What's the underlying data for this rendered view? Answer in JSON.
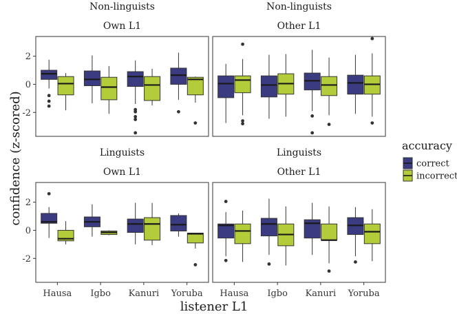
{
  "chart_data": {
    "type": "boxplot",
    "xlabel": "listener L1",
    "ylabel": "confidence (z-scored)",
    "categories": [
      "Hausa",
      "Igbo",
      "Kanuri",
      "Yoruba"
    ],
    "ylim": [
      -3.7,
      3.4
    ],
    "yticks": [
      -2,
      0,
      2
    ],
    "grid": false,
    "legend": {
      "title": "accuracy",
      "placement": "right",
      "entries": [
        {
          "label": "correct",
          "color": "#3b3b82"
        },
        {
          "label": "incorrect",
          "color": "#b3cc3a"
        }
      ]
    },
    "panels": [
      {
        "row_strip": "Non-linguists",
        "col_strip": "Own L1",
        "boxes": [
          {
            "category": "Hausa",
            "accuracy": "correct",
            "min": -0.3,
            "q1": 0.35,
            "median": 0.75,
            "q3": 1.0,
            "max": 1.75,
            "outliers": [
              -0.8,
              -1.2,
              -1.55
            ]
          },
          {
            "category": "Hausa",
            "accuracy": "incorrect",
            "min": -1.85,
            "q1": -0.75,
            "median": 0.05,
            "q3": 0.55,
            "max": 0.8,
            "outliers": []
          },
          {
            "category": "Igbo",
            "accuracy": "correct",
            "min": -1.35,
            "q1": -0.1,
            "median": 0.35,
            "q3": 0.95,
            "max": 2.05,
            "outliers": []
          },
          {
            "category": "Igbo",
            "accuracy": "incorrect",
            "min": -2.1,
            "q1": -1.1,
            "median": -0.2,
            "q3": 0.5,
            "max": 1.3,
            "outliers": []
          },
          {
            "category": "Kanuri",
            "accuracy": "correct",
            "min": -1.4,
            "q1": -0.15,
            "median": 0.55,
            "q3": 0.9,
            "max": 1.7,
            "outliers": [
              -1.8,
              -1.95,
              -2.3,
              -2.5,
              -3.45
            ]
          },
          {
            "category": "Kanuri",
            "accuracy": "incorrect",
            "min": -1.5,
            "q1": -1.15,
            "median": -0.05,
            "q3": 0.55,
            "max": 1.1,
            "outliers": []
          },
          {
            "category": "Yoruba",
            "accuracy": "correct",
            "min": -1.1,
            "q1": 0.0,
            "median": 0.65,
            "q3": 1.15,
            "max": 2.25,
            "outliers": [
              -1.95
            ]
          },
          {
            "category": "Yoruba",
            "accuracy": "incorrect",
            "min": -1.3,
            "q1": -0.75,
            "median": 0.35,
            "q3": 0.5,
            "max": 0.55,
            "outliers": [
              -2.75
            ]
          }
        ]
      },
      {
        "row_strip": "Non-linguists",
        "col_strip": "Other L1",
        "boxes": [
          {
            "category": "Hausa",
            "accuracy": "correct",
            "min": -2.75,
            "q1": -0.95,
            "median": 0.05,
            "q3": 0.6,
            "max": 1.45,
            "outliers": []
          },
          {
            "category": "Hausa",
            "accuracy": "incorrect",
            "min": -2.2,
            "q1": -0.6,
            "median": 0.3,
            "q3": 0.6,
            "max": 1.8,
            "outliers": [
              2.85,
              -2.6,
              -2.8
            ]
          },
          {
            "category": "Igbo",
            "accuracy": "correct",
            "min": -2.45,
            "q1": -0.9,
            "median": -0.05,
            "q3": 0.6,
            "max": 2.1,
            "outliers": []
          },
          {
            "category": "Igbo",
            "accuracy": "incorrect",
            "min": -2.3,
            "q1": -0.7,
            "median": 0.05,
            "q3": 0.75,
            "max": 2.15,
            "outliers": []
          },
          {
            "category": "Kanuri",
            "accuracy": "correct",
            "min": -1.9,
            "q1": -0.4,
            "median": 0.25,
            "q3": 0.8,
            "max": 2.45,
            "outliers": [
              -2.25,
              -3.45
            ]
          },
          {
            "category": "Kanuri",
            "accuracy": "incorrect",
            "min": -2.2,
            "q1": -0.8,
            "median": -0.05,
            "q3": 0.55,
            "max": 1.9,
            "outliers": [
              -2.85
            ]
          },
          {
            "category": "Yoruba",
            "accuracy": "correct",
            "min": -2.1,
            "q1": -0.7,
            "median": 0.1,
            "q3": 0.65,
            "max": 2.1,
            "outliers": []
          },
          {
            "category": "Yoruba",
            "accuracy": "incorrect",
            "min": -2.3,
            "q1": -0.7,
            "median": 0.0,
            "q3": 0.6,
            "max": 2.2,
            "outliers": [
              3.25,
              -2.75
            ]
          }
        ]
      },
      {
        "row_strip": "Linguists",
        "col_strip": "Own L1",
        "boxes": [
          {
            "category": "Hausa",
            "accuracy": "correct",
            "min": -0.55,
            "q1": 0.5,
            "median": 0.6,
            "q3": 1.2,
            "max": 1.65,
            "outliers": [
              2.6
            ]
          },
          {
            "category": "Hausa",
            "accuracy": "incorrect",
            "min": -1.0,
            "q1": -0.75,
            "median": -0.6,
            "q3": 0.0,
            "max": 0.65,
            "outliers": []
          },
          {
            "category": "Igbo",
            "accuracy": "correct",
            "min": -0.45,
            "q1": 0.25,
            "median": 0.6,
            "q3": 0.95,
            "max": 1.85,
            "outliers": []
          },
          {
            "category": "Igbo",
            "accuracy": "incorrect",
            "min": -0.35,
            "q1": -0.3,
            "median": -0.15,
            "q3": -0.05,
            "max": 0.0,
            "outliers": []
          },
          {
            "category": "Kanuri",
            "accuracy": "correct",
            "min": -1.0,
            "q1": -0.15,
            "median": 0.45,
            "q3": 0.8,
            "max": 1.95,
            "outliers": []
          },
          {
            "category": "Kanuri",
            "accuracy": "incorrect",
            "min": -1.05,
            "q1": -0.7,
            "median": 0.45,
            "q3": 0.9,
            "max": 1.95,
            "outliers": []
          },
          {
            "category": "Yoruba",
            "accuracy": "correct",
            "min": -0.45,
            "q1": -0.05,
            "median": 0.4,
            "q3": 1.05,
            "max": 1.2,
            "outliers": []
          },
          {
            "category": "Yoruba",
            "accuracy": "incorrect",
            "min": -1.3,
            "q1": -0.9,
            "median": -0.25,
            "q3": -0.2,
            "max": -0.2,
            "outliers": [
              -2.45
            ]
          }
        ]
      },
      {
        "row_strip": "Linguists",
        "col_strip": "Other L1",
        "boxes": [
          {
            "category": "Hausa",
            "accuracy": "correct",
            "min": -1.85,
            "q1": -0.55,
            "median": 0.35,
            "q3": 0.45,
            "max": 1.3,
            "outliers": [
              2.05,
              -2.15
            ]
          },
          {
            "category": "Hausa",
            "accuracy": "incorrect",
            "min": -2.25,
            "q1": -0.95,
            "median": -0.05,
            "q3": 0.45,
            "max": 1.4,
            "outliers": []
          },
          {
            "category": "Igbo",
            "accuracy": "correct",
            "min": -1.75,
            "q1": -0.4,
            "median": 0.45,
            "q3": 0.85,
            "max": 2.25,
            "outliers": [
              -2.4
            ]
          },
          {
            "category": "Igbo",
            "accuracy": "incorrect",
            "min": -2.5,
            "q1": -1.1,
            "median": -0.3,
            "q3": 0.45,
            "max": 1.7,
            "outliers": []
          },
          {
            "category": "Kanuri",
            "accuracy": "correct",
            "min": -1.75,
            "q1": -0.55,
            "median": 0.5,
            "q3": 0.75,
            "max": 1.95,
            "outliers": []
          },
          {
            "category": "Kanuri",
            "accuracy": "incorrect",
            "min": -2.35,
            "q1": -0.7,
            "median": -0.7,
            "q3": 0.45,
            "max": 1.7,
            "outliers": [
              -2.9
            ]
          },
          {
            "category": "Yoruba",
            "accuracy": "correct",
            "min": -1.85,
            "q1": -0.3,
            "median": 0.35,
            "q3": 0.9,
            "max": 1.65,
            "outliers": [
              -2.25
            ]
          },
          {
            "category": "Yoruba",
            "accuracy": "incorrect",
            "min": -2.2,
            "q1": -0.95,
            "median": -0.1,
            "q3": 0.45,
            "max": 1.5,
            "outliers": []
          }
        ]
      }
    ]
  }
}
